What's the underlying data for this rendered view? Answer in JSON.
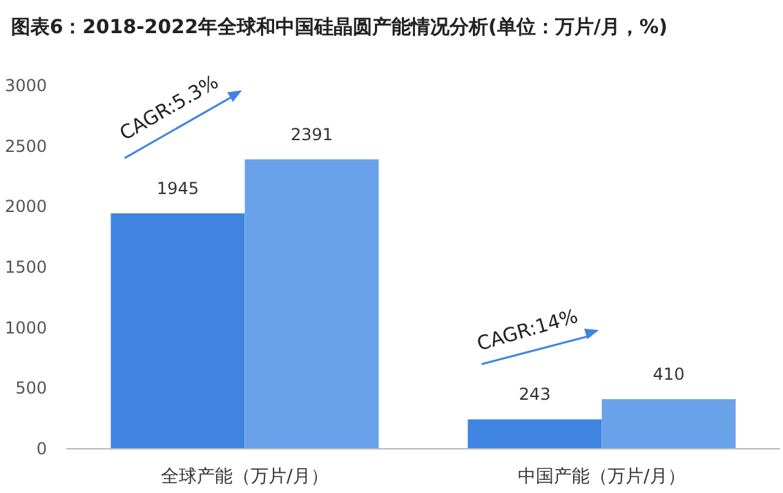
{
  "chart_data": {
    "type": "bar",
    "title": "图表6：2018-2022年全球和中国硅晶圆产能情况分析(单位：万片/月，%)",
    "categories": [
      "全球产能（万片/月）",
      "中国产能（万片/月）"
    ],
    "series": [
      {
        "color": "#3f84e0",
        "values": [
          1945,
          243
        ]
      },
      {
        "color": "#6aa2ea",
        "values": [
          2391,
          410
        ]
      }
    ],
    "data_labels": true,
    "ylim": [
      0,
      3000
    ],
    "yticks": [
      0,
      500,
      1000,
      1500,
      2000,
      2500,
      3000
    ],
    "annotations": [
      "CAGR:5.3%",
      "CAGR:14%"
    ]
  }
}
